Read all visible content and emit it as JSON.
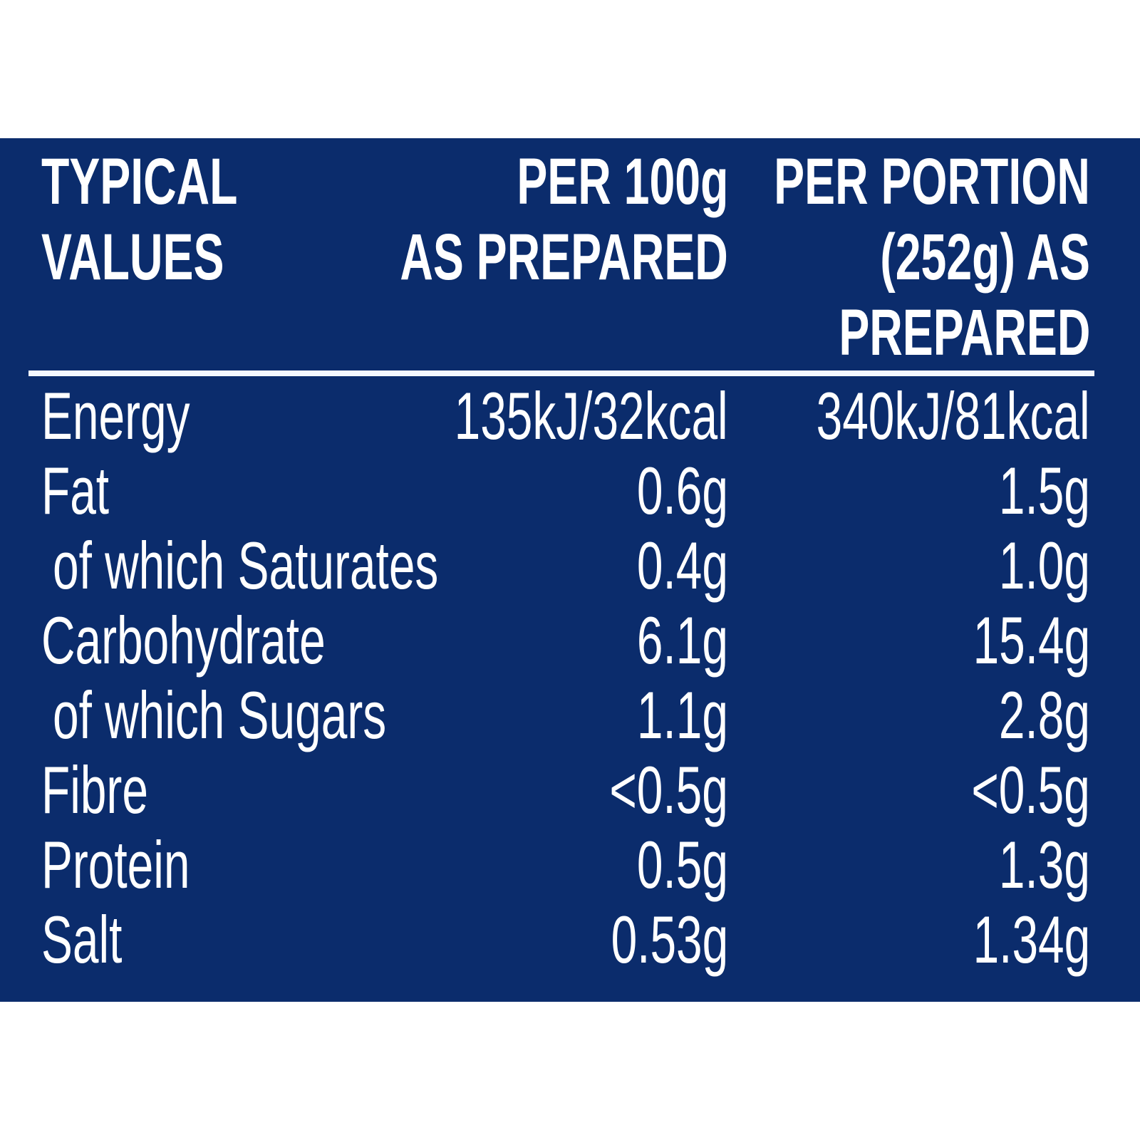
{
  "colors": {
    "background": "#0b2c6c",
    "text": "#ffffff"
  },
  "header": {
    "col1": [
      "TYPICAL",
      "VALUES"
    ],
    "col2": [
      "PER 100g",
      "AS PREPARED"
    ],
    "col3": [
      "PER PORTION",
      "(252g) AS",
      "PREPARED"
    ]
  },
  "rows": [
    {
      "label": "Energy",
      "per100g": "135kJ/32kcal",
      "perPortion": "340kJ/81kcal"
    },
    {
      "label": "Fat",
      "per100g": "0.6g",
      "perPortion": "1.5g"
    },
    {
      "label": "of which Saturates",
      "per100g": "0.4g",
      "perPortion": "1.0g"
    },
    {
      "label": "Carbohydrate",
      "per100g": "6.1g",
      "perPortion": "15.4g"
    },
    {
      "label": "of which Sugars",
      "per100g": "1.1g",
      "perPortion": "2.8g"
    },
    {
      "label": "Fibre",
      "per100g": "<0.5g",
      "perPortion": "<0.5g"
    },
    {
      "label": "Protein",
      "per100g": "0.5g",
      "perPortion": "1.3g"
    },
    {
      "label": "Salt",
      "per100g": "0.53g",
      "perPortion": "1.34g"
    }
  ]
}
